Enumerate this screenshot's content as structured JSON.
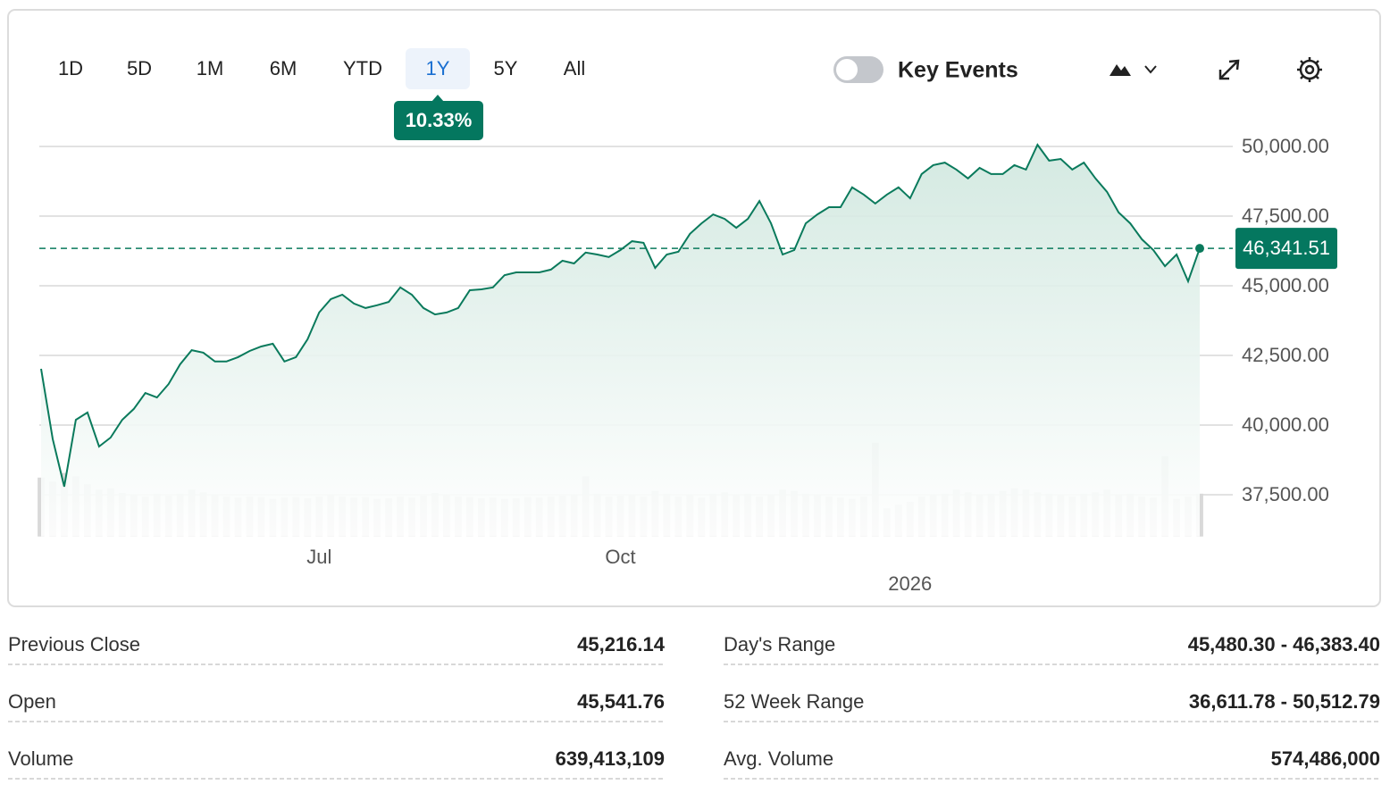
{
  "toolbar": {
    "ranges": [
      "1D",
      "5D",
      "1M",
      "6M",
      "YTD",
      "1Y",
      "5Y",
      "All"
    ],
    "selected": "1Y",
    "change": "10.33%",
    "key_events": "Key Events"
  },
  "chart_data": {
    "type": "line",
    "color": "#0a7a5c",
    "categories": [
      null,
      null,
      null,
      null,
      null,
      null,
      null,
      null,
      null,
      null,
      null,
      null,
      null,
      null,
      null,
      null,
      null,
      null,
      null,
      null,
      null,
      null,
      null,
      null,
      "Jul",
      null,
      null,
      null,
      null,
      null,
      null,
      null,
      null,
      null,
      null,
      null,
      null,
      null,
      null,
      null,
      null,
      null,
      null,
      null,
      null,
      null,
      null,
      null,
      null,
      null,
      "Oct",
      null,
      null,
      null,
      null,
      null,
      null,
      null,
      null,
      null,
      null,
      null,
      null,
      null,
      null,
      null,
      null,
      null,
      null,
      null,
      null,
      null,
      null,
      null,
      null,
      "2026",
      null,
      null,
      null,
      null,
      null,
      null,
      null,
      null,
      null,
      null,
      null,
      null,
      null,
      null,
      null,
      null,
      null,
      null,
      null,
      null,
      null,
      null,
      null,
      null,
      null
    ],
    "values": [
      42019,
      39500,
      37790,
      40190,
      40450,
      39230,
      39550,
      40190,
      40580,
      41150,
      40990,
      41470,
      42180,
      42690,
      42600,
      42280,
      42280,
      42440,
      42660,
      42820,
      42920,
      42280,
      42440,
      43080,
      44040,
      44520,
      44680,
      44360,
      44200,
      44300,
      44420,
      44940,
      44680,
      44200,
      43970,
      44040,
      44200,
      44840,
      44870,
      44940,
      45380,
      45480,
      45480,
      45480,
      45580,
      45900,
      45800,
      46190,
      46120,
      46030,
      46280,
      46600,
      46540,
      45640,
      46120,
      46220,
      46860,
      47240,
      47560,
      47400,
      47080,
      47400,
      48040,
      47240,
      46120,
      46280,
      47240,
      47560,
      47820,
      47820,
      48530,
      48270,
      47950,
      48270,
      48530,
      48140,
      49010,
      49330,
      49420,
      49170,
      48850,
      49230,
      49010,
      49010,
      49330,
      49170,
      50060,
      49490,
      49550,
      49170,
      49420,
      48850,
      48370,
      47630,
      47240,
      46670,
      46280,
      45700,
      46120,
      45160,
      46341.51
    ],
    "volume": [
      880000000,
      820000000,
      950000000,
      900000000,
      780000000,
      700000000,
      720000000,
      650000000,
      620000000,
      600000000,
      640000000,
      610000000,
      640000000,
      700000000,
      660000000,
      620000000,
      600000000,
      580000000,
      600000000,
      590000000,
      560000000,
      580000000,
      590000000,
      570000000,
      600000000,
      620000000,
      600000000,
      580000000,
      590000000,
      560000000,
      570000000,
      600000000,
      580000000,
      610000000,
      650000000,
      620000000,
      600000000,
      590000000,
      570000000,
      580000000,
      560000000,
      570000000,
      590000000,
      580000000,
      600000000,
      610000000,
      620000000,
      900000000,
      640000000,
      600000000,
      610000000,
      620000000,
      600000000,
      680000000,
      640000000,
      600000000,
      620000000,
      580000000,
      640000000,
      660000000,
      620000000,
      640000000,
      600000000,
      620000000,
      700000000,
      680000000,
      640000000,
      620000000,
      600000000,
      580000000,
      560000000,
      600000000,
      1400000000,
      420000000,
      480000000,
      520000000,
      600000000,
      620000000,
      640000000,
      700000000,
      660000000,
      620000000,
      640000000,
      680000000,
      720000000,
      700000000,
      660000000,
      640000000,
      620000000,
      600000000,
      640000000,
      660000000,
      700000000,
      620000000,
      640000000,
      600000000,
      580000000,
      1200000000,
      560000000,
      600000000,
      640000000
    ],
    "volume_color": "#d9d9d9",
    "volume_lim": [
      0,
      2000000000
    ],
    "ylim": [
      36000,
      50800
    ],
    "yticks": [
      {
        "value": 37500,
        "label": "37,500.00"
      },
      {
        "value": 40000,
        "label": "40,000.00"
      },
      {
        "value": 42500,
        "label": "42,500.00"
      },
      {
        "value": 45000,
        "label": "45,000.00"
      },
      {
        "value": 47500,
        "label": "47,500.00"
      },
      {
        "value": 50000,
        "label": "50,000.00"
      }
    ],
    "grid": true,
    "last_price": {
      "value": 46341.51,
      "label": "46,341.51"
    }
  },
  "stats": {
    "rows": [
      [
        {
          "label": "Previous Close",
          "value": "45,216.14"
        },
        {
          "label": "Day's Range",
          "value": "45,480.30 - 46,383.40"
        }
      ],
      [
        {
          "label": "Open",
          "value": "45,541.76"
        },
        {
          "label": "52 Week Range",
          "value": "36,611.78 - 50,512.79"
        }
      ],
      [
        {
          "label": "Volume",
          "value": "639,413,109"
        },
        {
          "label": "Avg. Volume",
          "value": "574,486,000"
        }
      ]
    ]
  }
}
